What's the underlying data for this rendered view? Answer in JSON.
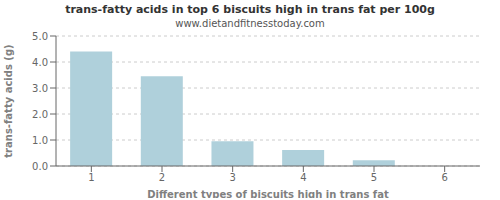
{
  "chart_data": {
    "type": "bar",
    "title": "trans-fatty acids in top 6 biscuits high in trans fat per 100g",
    "subtitle": "www.dietandfitnesstoday.com",
    "xlabel": "Different types of biscuits high in trans fat",
    "ylabel": "trans-fatty acids (g)",
    "categories": [
      1,
      2,
      3,
      4,
      5,
      6
    ],
    "values": [
      4.4,
      3.45,
      0.95,
      0.62,
      0.22,
      0.0
    ],
    "color": "#afd0db",
    "ylim": [
      0,
      5.0
    ],
    "yticks": [
      {
        "value": 0.0,
        "label": "0.0"
      },
      {
        "value": 1.0,
        "label": "1.0"
      },
      {
        "value": 2.0,
        "label": "2.0"
      },
      {
        "value": 3.0,
        "label": "3.0"
      },
      {
        "value": 4.0,
        "label": "4.0"
      },
      {
        "value": 5.0,
        "label": "5.0"
      }
    ],
    "grid": true
  }
}
